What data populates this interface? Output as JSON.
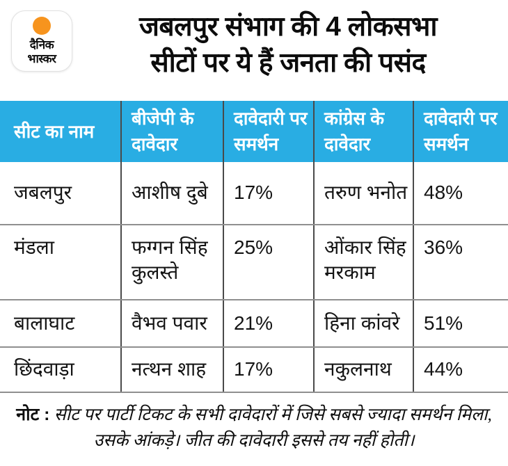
{
  "brand": {
    "logo_line1": "दैनिक",
    "logo_line2": "भास्कर"
  },
  "title": {
    "line1": "जबलपुर संभाग की 4 लोकसभा",
    "line2": "सीटों पर ये हैं जनता की पसंद"
  },
  "chart_data": {
    "type": "table",
    "title": "जबलपुर संभाग की 4 लोकसभा सीटों पर ये हैं जनता की पसंद",
    "columns": [
      "सीट का नाम",
      "बीजेपी के दावेदार",
      "दावेदारी पर समर्थन",
      "कांग्रेस के दावेदार",
      "दावेदारी पर समर्थन"
    ],
    "rows": [
      [
        "जबलपुर",
        "आशीष दुबे",
        "17%",
        "तरुण भनोत",
        "48%"
      ],
      [
        "मंडला",
        "फग्गन सिंह कुलस्ते",
        "25%",
        "ओंकार सिंह मरकाम",
        "36%"
      ],
      [
        "बालाघाट",
        "वैभव पवार",
        "21%",
        "हिना कांवरे",
        "51%"
      ],
      [
        "छिंदवाड़ा",
        "नत्थन शाह",
        "17%",
        "नकुलनाथ",
        "44%"
      ]
    ],
    "bjp_support_values_pct": [
      17,
      25,
      21,
      17
    ],
    "congress_support_values_pct": [
      48,
      36,
      51,
      44
    ]
  },
  "note": {
    "label": "नोट :",
    "text": " सीट पर पार्टी टिकट के सभी दावेदारों में जिसे सबसे ज्यादा समर्थन मिला, उसके आंकड़े। जीत की दावेदारी इससे तय नहीं होती।"
  },
  "colors": {
    "header_bg": "#29ade3",
    "accent_orange": "#f7941e",
    "divider_dark": "#4a4a4a",
    "divider_gray": "#8f8f8f"
  }
}
